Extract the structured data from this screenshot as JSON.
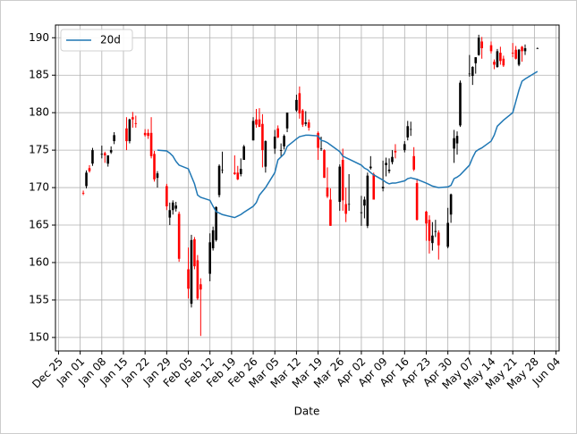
{
  "chart_data": {
    "type": "candlestick",
    "x_label": "Date",
    "xlim": [
      "12-24",
      "06-05"
    ],
    "ylim": [
      148.2,
      191.7
    ],
    "yticks": [
      150,
      155,
      160,
      165,
      170,
      175,
      180,
      185,
      190
    ],
    "xticks": [
      {
        "value": "12-25",
        "label": "Dec 25"
      },
      {
        "value": "01-01",
        "label": "Jan 01"
      },
      {
        "value": "01-08",
        "label": "Jan 08"
      },
      {
        "value": "01-15",
        "label": "Jan 15"
      },
      {
        "value": "01-22",
        "label": "Jan 22"
      },
      {
        "value": "01-29",
        "label": "Jan 29"
      },
      {
        "value": "02-05",
        "label": "Feb 05"
      },
      {
        "value": "02-12",
        "label": "Feb 12"
      },
      {
        "value": "02-19",
        "label": "Feb 19"
      },
      {
        "value": "02-26",
        "label": "Feb 26"
      },
      {
        "value": "03-05",
        "label": "Mar 05"
      },
      {
        "value": "03-12",
        "label": "Mar 12"
      },
      {
        "value": "03-19",
        "label": "Mar 19"
      },
      {
        "value": "03-26",
        "label": "Mar 26"
      },
      {
        "value": "04-02",
        "label": "Apr 02"
      },
      {
        "value": "04-09",
        "label": "Apr 09"
      },
      {
        "value": "04-16",
        "label": "Apr 16"
      },
      {
        "value": "04-23",
        "label": "Apr 23"
      },
      {
        "value": "04-30",
        "label": "Apr 30"
      },
      {
        "value": "05-07",
        "label": "May 07"
      },
      {
        "value": "05-14",
        "label": "May 14"
      },
      {
        "value": "05-21",
        "label": "May 21"
      },
      {
        "value": "05-28",
        "label": "May 28"
      },
      {
        "value": "06-04",
        "label": "Jun 04"
      }
    ],
    "grid": true,
    "legend": "upper left",
    "candles": {
      "up_color": "black",
      "down_color": "red",
      "x": [
        "01-02",
        "01-03",
        "01-04",
        "01-05",
        "01-08",
        "01-09",
        "01-10",
        "01-11",
        "01-12",
        "01-16",
        "01-17",
        "01-18",
        "01-19",
        "01-22",
        "01-23",
        "01-24",
        "01-25",
        "01-26",
        "01-29",
        "01-30",
        "01-31",
        "02-01",
        "02-02",
        "02-05",
        "02-06",
        "02-07",
        "02-08",
        "02-09",
        "02-12",
        "02-13",
        "02-14",
        "02-15",
        "02-16",
        "02-20",
        "02-21",
        "02-22",
        "02-23",
        "02-26",
        "02-27",
        "02-28",
        "03-01",
        "03-02",
        "03-05",
        "03-06",
        "03-07",
        "03-08",
        "03-09",
        "03-12",
        "03-13",
        "03-14",
        "03-15",
        "03-16",
        "03-19",
        "03-20",
        "03-21",
        "03-22",
        "03-23",
        "03-26",
        "03-27",
        "03-28",
        "03-29",
        "04-02",
        "04-03",
        "04-04",
        "04-05",
        "04-06",
        "04-09",
        "04-10",
        "04-11",
        "04-12",
        "04-13",
        "04-16",
        "04-17",
        "04-18",
        "04-19",
        "04-20",
        "04-23",
        "04-24",
        "04-25",
        "04-26",
        "04-27",
        "04-30",
        "05-01",
        "05-02",
        "05-03",
        "05-04",
        "05-07",
        "05-08",
        "05-09",
        "05-10",
        "05-11",
        "05-14",
        "05-15",
        "05-16",
        "05-17",
        "05-18",
        "05-21",
        "05-22",
        "05-23",
        "05-24",
        "05-25",
        "05-29"
      ],
      "open": [
        169.3,
        170.2,
        172.6,
        173.2,
        174.4,
        174.6,
        173.2,
        174.7,
        176.2,
        177.9,
        176.2,
        179.4,
        178.6,
        177.3,
        177.3,
        177.3,
        174.5,
        171.3,
        170.2,
        166.0,
        167.0,
        167.2,
        166.5,
        159.1,
        154.5,
        163.1,
        160.3,
        157.1,
        158.5,
        161.9,
        163.0,
        169.0,
        172.4,
        172.0,
        172.0,
        171.8,
        173.7,
        176.3,
        179.1,
        179.1,
        178.5,
        172.8,
        175.2,
        177.9,
        174.9,
        175.5,
        177.9,
        180.3,
        182.6,
        180.3,
        178.5,
        178.7,
        177.3,
        175.2,
        175.0,
        170.0,
        168.4,
        168.1,
        173.7,
        167.8,
        167.8,
        166.6,
        167.6,
        164.9,
        172.6,
        171.8,
        169.9,
        173.0,
        172.2,
        173.4,
        174.9,
        175.0,
        176.7,
        177.8,
        174.2,
        170.6,
        166.8,
        165.7,
        162.6,
        164.1,
        164.0,
        162.1,
        166.4,
        175.2,
        175.9,
        178.3,
        185.2,
        184.9,
        186.6,
        187.7,
        189.5,
        189.0,
        186.8,
        186.1,
        188.0,
        187.2,
        188.0,
        188.4,
        186.4,
        188.8,
        188.2,
        188.6
      ],
      "high": [
        169.6,
        172.3,
        173.0,
        175.3,
        175.6,
        174.8,
        174.0,
        175.5,
        177.4,
        179.4,
        179.2,
        180.1,
        179.6,
        177.8,
        177.8,
        179.4,
        174.9,
        172.2,
        170.5,
        168.0,
        168.3,
        168.1,
        166.8,
        162.0,
        163.7,
        163.4,
        161.0,
        157.9,
        163.9,
        164.8,
        167.5,
        173.1,
        174.8,
        174.3,
        172.9,
        173.9,
        175.7,
        179.4,
        180.5,
        180.6,
        179.8,
        176.3,
        177.7,
        178.3,
        175.9,
        177.1,
        180.0,
        182.4,
        183.5,
        180.5,
        180.2,
        179.1,
        177.5,
        176.8,
        175.1,
        172.7,
        169.9,
        173.1,
        175.2,
        170.0,
        171.8,
        168.9,
        168.8,
        172.0,
        174.2,
        172.0,
        173.6,
        174.0,
        173.9,
        175.0,
        175.8,
        176.2,
        178.9,
        178.8,
        175.4,
        171.2,
        166.9,
        166.3,
        165.4,
        165.7,
        164.3,
        167.3,
        169.2,
        177.7,
        177.5,
        184.3,
        187.7,
        186.2,
        187.4,
        190.4,
        190.1,
        189.5,
        187.1,
        188.5,
        188.8,
        187.6,
        189.3,
        188.9,
        188.5,
        188.9,
        189.1,
        188.7
      ],
      "low": [
        169.0,
        169.9,
        172.0,
        172.9,
        173.9,
        173.3,
        172.8,
        174.5,
        175.8,
        175.0,
        175.9,
        178.0,
        178.0,
        176.8,
        176.5,
        173.9,
        170.8,
        170.0,
        167.0,
        165.0,
        166.4,
        166.8,
        160.1,
        155.2,
        154.0,
        159.1,
        155.0,
        150.2,
        157.5,
        161.6,
        162.8,
        168.7,
        171.9,
        171.7,
        171.0,
        171.5,
        173.7,
        176.3,
        178.0,
        178.1,
        172.7,
        172.0,
        174.5,
        176.6,
        174.2,
        175.1,
        177.4,
        180.1,
        179.2,
        178.1,
        178.2,
        177.6,
        173.7,
        174.9,
        171.3,
        168.6,
        164.9,
        166.9,
        166.9,
        165.4,
        166.9,
        164.9,
        165.9,
        164.6,
        172.4,
        168.4,
        169.5,
        171.5,
        171.9,
        173.1,
        173.9,
        174.7,
        176.3,
        176.9,
        172.2,
        165.6,
        162.9,
        161.2,
        161.6,
        163.4,
        160.4,
        161.9,
        165.3,
        173.3,
        174.4,
        178.1,
        184.8,
        183.7,
        185.2,
        187.6,
        187.2,
        187.9,
        185.8,
        186.0,
        186.4,
        186.1,
        187.4,
        187.1,
        186.2,
        186.8,
        187.7,
        188.5
      ],
      "close": [
        169.2,
        172.0,
        172.2,
        175.0,
        174.5,
        174.3,
        174.3,
        175.0,
        177.0,
        176.2,
        179.1,
        179.1,
        178.5,
        177.0,
        176.9,
        174.2,
        171.1,
        171.9,
        167.5,
        167.0,
        168.0,
        167.6,
        160.5,
        156.5,
        163.0,
        159.5,
        155.2,
        156.4,
        162.7,
        164.3,
        167.4,
        172.9,
        172.4,
        171.8,
        171.1,
        172.5,
        175.5,
        178.9,
        178.4,
        178.1,
        175.0,
        176.2,
        176.8,
        176.7,
        175.0,
        176.9,
        180.0,
        181.7,
        179.9,
        178.4,
        178.7,
        178.0,
        175.3,
        175.2,
        171.3,
        168.8,
        164.9,
        172.8,
        168.3,
        166.5,
        167.8,
        166.7,
        168.4,
        171.6,
        172.8,
        168.4,
        170.1,
        173.3,
        172.4,
        174.1,
        174.7,
        175.8,
        178.2,
        177.8,
        172.4,
        165.7,
        165.2,
        162.9,
        163.6,
        164.2,
        162.3,
        165.3,
        169.1,
        176.6,
        176.9,
        184.0,
        185.2,
        186.1,
        187.4,
        190.0,
        188.6,
        188.2,
        186.4,
        188.2,
        186.9,
        186.3,
        187.9,
        187.2,
        188.4,
        188.2,
        188.6,
        188.6
      ]
    },
    "series": [
      {
        "name": "20d",
        "color": "#1f77b4",
        "x": [
          "01-26",
          "01-29",
          "01-30",
          "01-31",
          "02-01",
          "02-02",
          "02-05",
          "02-06",
          "02-07",
          "02-08",
          "02-09",
          "02-12",
          "02-13",
          "02-14",
          "02-15",
          "02-16",
          "02-20",
          "02-21",
          "02-22",
          "02-23",
          "02-26",
          "02-27",
          "02-28",
          "03-01",
          "03-02",
          "03-05",
          "03-06",
          "03-07",
          "03-08",
          "03-09",
          "03-12",
          "03-13",
          "03-14",
          "03-15",
          "03-16",
          "03-19",
          "03-20",
          "03-21",
          "03-22",
          "03-23",
          "03-26",
          "03-27",
          "03-28",
          "03-29",
          "04-02",
          "04-03",
          "04-04",
          "04-05",
          "04-06",
          "04-09",
          "04-10",
          "04-11",
          "04-12",
          "04-13",
          "04-16",
          "04-17",
          "04-18",
          "04-19",
          "04-20",
          "04-23",
          "04-24",
          "04-25",
          "04-26",
          "04-27",
          "04-30",
          "05-01",
          "05-02",
          "05-03",
          "05-04",
          "05-07",
          "05-08",
          "05-09",
          "05-10",
          "05-11",
          "05-14",
          "05-15",
          "05-16",
          "05-17",
          "05-18",
          "05-21",
          "05-22",
          "05-23",
          "05-24",
          "05-25",
          "05-29"
        ],
        "values": [
          175.0,
          174.9,
          174.6,
          174.2,
          173.5,
          173.0,
          172.5,
          171.5,
          170.5,
          169.0,
          168.7,
          168.3,
          167.5,
          166.8,
          166.6,
          166.4,
          166.0,
          166.2,
          166.4,
          166.7,
          167.5,
          168.0,
          169.0,
          169.5,
          170.0,
          172.0,
          173.7,
          174.1,
          174.5,
          175.5,
          176.5,
          176.8,
          176.9,
          177.0,
          177.0,
          176.9,
          176.3,
          176.2,
          176.0,
          175.7,
          174.8,
          174.2,
          174.0,
          173.8,
          173.0,
          172.6,
          172.4,
          172.0,
          171.7,
          171.0,
          170.7,
          170.5,
          170.6,
          170.6,
          170.9,
          171.2,
          171.3,
          171.2,
          171.1,
          170.6,
          170.4,
          170.2,
          170.1,
          170.0,
          170.1,
          170.3,
          171.2,
          171.4,
          171.7,
          173.0,
          174.0,
          174.8,
          175.1,
          175.3,
          176.2,
          177.0,
          178.2,
          178.6,
          179.0,
          180.0,
          181.5,
          183.0,
          184.2,
          184.5,
          185.5
        ]
      }
    ]
  }
}
